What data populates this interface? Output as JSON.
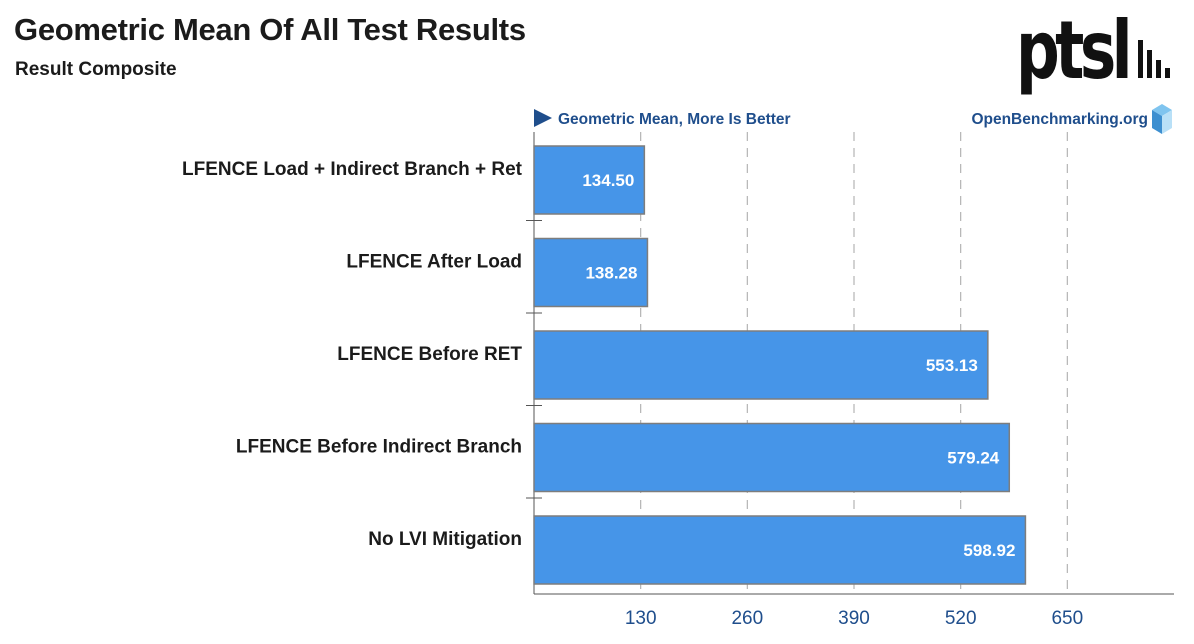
{
  "header": {
    "title": "Geometric Mean Of All Test Results",
    "subtitle": "Result Composite"
  },
  "logo": {
    "text": "ptsl"
  },
  "chart_data": {
    "type": "bar",
    "orientation": "horizontal",
    "metric_label": "Geometric Mean, More Is Better",
    "source_label": "OpenBenchmarking.org",
    "categories": [
      "LFENCE Load + Indirect Branch + Ret",
      "LFENCE After Load",
      "LFENCE Before RET",
      "LFENCE Before Indirect Branch",
      "No LVI Mitigation"
    ],
    "values": [
      134.5,
      138.28,
      553.13,
      579.24,
      598.92
    ],
    "value_labels": [
      "134.50",
      "138.28",
      "553.13",
      "579.24",
      "598.92"
    ],
    "ticks": [
      130,
      260,
      390,
      520,
      650
    ],
    "xlim": [
      0,
      780
    ],
    "grid": true,
    "colors": {
      "bar": "#4695e8",
      "bar_border": "#7d7d7d",
      "grid": "#b4b4b4",
      "axis": "#555555",
      "tick_label": "#1f4e8c",
      "header_label": "#1f4e8c",
      "category_label": "#1b1b1b",
      "value_label": "#ffffff"
    }
  }
}
